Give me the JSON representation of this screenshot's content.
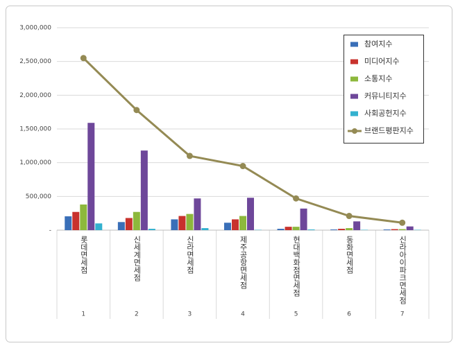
{
  "chart_data": {
    "type": "bar",
    "categories": [
      "롯데면세점",
      "신세계면세점",
      "신라면세점",
      "제주공항면세점",
      "현대백화점면세점",
      "동화면세점",
      "신라아이파크면세점"
    ],
    "category_numbers": [
      1,
      2,
      3,
      4,
      5,
      6,
      7
    ],
    "series": [
      {
        "name": "참여지수",
        "color": "#3a6fb8",
        "values": [
          205000,
          120000,
          160000,
          110000,
          20000,
          10000,
          10000
        ]
      },
      {
        "name": "미디어지수",
        "color": "#c8322d",
        "values": [
          270000,
          180000,
          210000,
          160000,
          50000,
          20000,
          15000
        ]
      },
      {
        "name": "소통지수",
        "color": "#8db83c",
        "values": [
          380000,
          270000,
          240000,
          210000,
          50000,
          30000,
          15000
        ]
      },
      {
        "name": "커뮤니티지수",
        "color": "#6e479a",
        "values": [
          1590000,
          1180000,
          470000,
          480000,
          320000,
          130000,
          55000
        ]
      },
      {
        "name": "사회공헌지수",
        "color": "#33b1cf",
        "values": [
          100000,
          20000,
          30000,
          5000,
          10000,
          5000,
          5000
        ]
      },
      {
        "name": "브랜드평판지수",
        "color": "#948a54",
        "type": "line",
        "values": [
          2550000,
          1780000,
          1100000,
          950000,
          470000,
          210000,
          110000
        ]
      }
    ],
    "ylim": [
      0,
      3000000
    ],
    "yticks": [
      {
        "value": 0,
        "label": "-"
      },
      {
        "value": 500000,
        "label": "500,000"
      },
      {
        "value": 1000000,
        "label": "1,000,000"
      },
      {
        "value": 1500000,
        "label": "1,500,000"
      },
      {
        "value": 2000000,
        "label": "2,000,000"
      },
      {
        "value": 2500000,
        "label": "2,500,000"
      },
      {
        "value": 3000000,
        "label": "3,000,000"
      }
    ],
    "grid": true,
    "legend": "top-right"
  }
}
